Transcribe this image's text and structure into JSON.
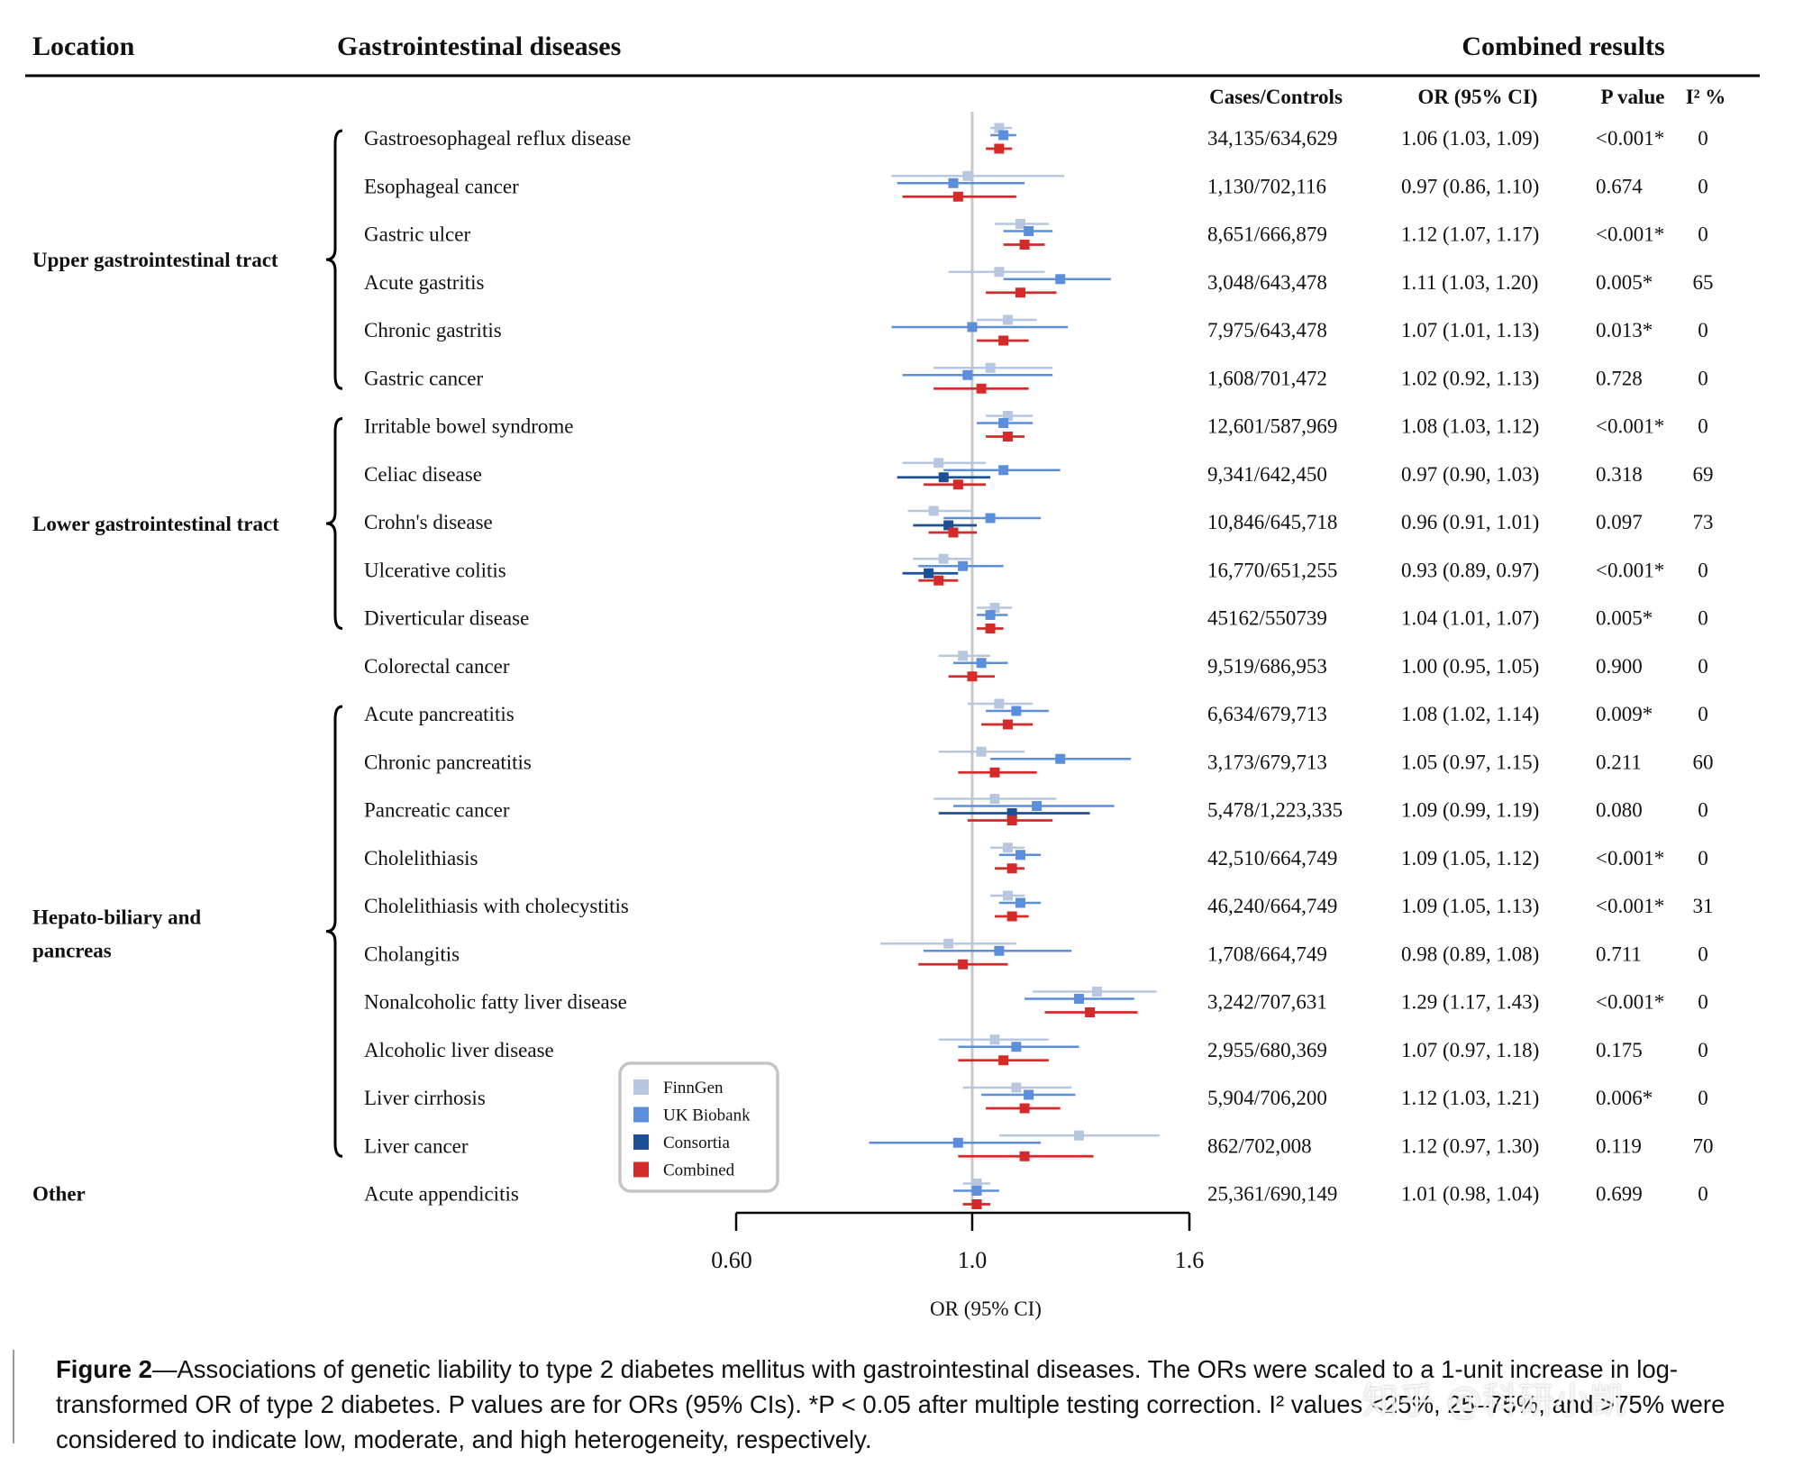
{
  "header": {
    "location": "Location",
    "diseases": "Gastrointestinal diseases",
    "combined": "Combined results"
  },
  "columns": {
    "cases_controls": "Cases/Controls",
    "or_ci": "OR (95% CI)",
    "p_value": "P value",
    "i2": "I² %"
  },
  "groups": [
    {
      "label": "Upper gastrointestinal tract",
      "first_row": 0,
      "last_row": 5
    },
    {
      "label": "Lower gastrointestinal tract",
      "first_row": 6,
      "last_row": 10
    },
    {
      "label": "Hepato-biliary and pancreas",
      "first_row": 12,
      "last_row": 21
    },
    {
      "label": "Other",
      "first_row": 22,
      "last_row": 22
    }
  ],
  "colors": {
    "finngen": "#b7c7e0",
    "ukbiobank": "#5b8fdb",
    "consortia": "#1c4f96",
    "combined": "#d42a2a",
    "reference_line": "#c8c8c8"
  },
  "legend": {
    "entries": [
      {
        "key": "finngen",
        "label": "FinnGen"
      },
      {
        "key": "ukbiobank",
        "label": "UK Biobank"
      },
      {
        "key": "consortia",
        "label": "Consortia"
      },
      {
        "key": "combined",
        "label": "Combined"
      }
    ]
  },
  "chart_data": {
    "type": "forest",
    "xlabel": "OR (95% CI)",
    "xscale": "log",
    "xlim": [
      0.6,
      1.6
    ],
    "xticks": [
      0.6,
      1.0,
      1.6
    ],
    "xtick_labels": [
      "0.60",
      "1.0",
      "1.6"
    ],
    "reference_line": 1.0,
    "rows": [
      {
        "disease": "Gastroesophageal reflux disease",
        "cases_controls": "34,135/634,629",
        "or_text": "1.06 (1.03, 1.09)",
        "p": "<0.001*",
        "i2": "0",
        "estimates": [
          {
            "source": "finngen",
            "or": 1.06,
            "lo": 1.04,
            "hi": 1.09
          },
          {
            "source": "ukbiobank",
            "or": 1.07,
            "lo": 1.04,
            "hi": 1.1
          },
          {
            "source": "combined",
            "or": 1.06,
            "lo": 1.03,
            "hi": 1.09
          }
        ]
      },
      {
        "disease": "Esophageal cancer",
        "cases_controls": "1,130/702,116",
        "or_text": "0.97 (0.86, 1.10)",
        "p": "0.674",
        "i2": "0",
        "estimates": [
          {
            "source": "finngen",
            "or": 0.99,
            "lo": 0.84,
            "hi": 1.22
          },
          {
            "source": "ukbiobank",
            "or": 0.96,
            "lo": 0.85,
            "hi": 1.12
          },
          {
            "source": "combined",
            "or": 0.97,
            "lo": 0.86,
            "hi": 1.1
          }
        ]
      },
      {
        "disease": "Gastric ulcer",
        "cases_controls": "8,651/666,879",
        "or_text": "1.12 (1.07, 1.17)",
        "p": "<0.001*",
        "i2": "0",
        "estimates": [
          {
            "source": "finngen",
            "or": 1.11,
            "lo": 1.05,
            "hi": 1.18
          },
          {
            "source": "ukbiobank",
            "or": 1.13,
            "lo": 1.07,
            "hi": 1.19
          },
          {
            "source": "combined",
            "or": 1.12,
            "lo": 1.07,
            "hi": 1.17
          }
        ]
      },
      {
        "disease": "Acute gastritis",
        "cases_controls": "3,048/643,478",
        "or_text": "1.11 (1.03, 1.20)",
        "p": "0.005*",
        "i2": "65",
        "estimates": [
          {
            "source": "finngen",
            "or": 1.06,
            "lo": 0.95,
            "hi": 1.17
          },
          {
            "source": "ukbiobank",
            "or": 1.21,
            "lo": 1.07,
            "hi": 1.35
          },
          {
            "source": "combined",
            "or": 1.11,
            "lo": 1.03,
            "hi": 1.2
          }
        ]
      },
      {
        "disease": "Chronic gastritis",
        "cases_controls": "7,975/643,478",
        "or_text": "1.07 (1.01, 1.13)",
        "p": "0.013*",
        "i2": "0",
        "estimates": [
          {
            "source": "finngen",
            "or": 1.08,
            "lo": 1.01,
            "hi": 1.15
          },
          {
            "source": "ukbiobank",
            "or": 1.0,
            "lo": 0.84,
            "hi": 1.23
          },
          {
            "source": "combined",
            "or": 1.07,
            "lo": 1.01,
            "hi": 1.13
          }
        ]
      },
      {
        "disease": "Gastric cancer",
        "cases_controls": "1,608/701,472",
        "or_text": "1.02 (0.92, 1.13)",
        "p": "0.728",
        "i2": "0",
        "estimates": [
          {
            "source": "finngen",
            "or": 1.04,
            "lo": 0.92,
            "hi": 1.19
          },
          {
            "source": "ukbiobank",
            "or": 0.99,
            "lo": 0.86,
            "hi": 1.19
          },
          {
            "source": "combined",
            "or": 1.02,
            "lo": 0.92,
            "hi": 1.13
          }
        ]
      },
      {
        "disease": "Irritable bowel syndrome",
        "cases_controls": "12,601/587,969",
        "or_text": "1.08 (1.03, 1.12)",
        "p": "<0.001*",
        "i2": "0",
        "estimates": [
          {
            "source": "finngen",
            "or": 1.08,
            "lo": 1.03,
            "hi": 1.14
          },
          {
            "source": "ukbiobank",
            "or": 1.07,
            "lo": 1.01,
            "hi": 1.14
          },
          {
            "source": "combined",
            "or": 1.08,
            "lo": 1.03,
            "hi": 1.12
          }
        ]
      },
      {
        "disease": "Celiac disease",
        "cases_controls": "9,341/642,450",
        "or_text": "0.97 (0.90, 1.03)",
        "p": "0.318",
        "i2": "69",
        "estimates": [
          {
            "source": "finngen",
            "or": 0.93,
            "lo": 0.86,
            "hi": 1.03
          },
          {
            "source": "ukbiobank",
            "or": 1.07,
            "lo": 0.94,
            "hi": 1.21
          },
          {
            "source": "consortia",
            "or": 0.94,
            "lo": 0.85,
            "hi": 1.04
          },
          {
            "source": "combined",
            "or": 0.97,
            "lo": 0.9,
            "hi": 1.03
          }
        ]
      },
      {
        "disease": "Crohn's disease",
        "cases_controls": "10,846/645,718",
        "or_text": "0.96 (0.91, 1.01)",
        "p": "0.097",
        "i2": "73",
        "estimates": [
          {
            "source": "finngen",
            "or": 0.92,
            "lo": 0.87,
            "hi": 1.0
          },
          {
            "source": "ukbiobank",
            "or": 1.04,
            "lo": 0.94,
            "hi": 1.16
          },
          {
            "source": "consortia",
            "or": 0.95,
            "lo": 0.88,
            "hi": 1.01
          },
          {
            "source": "combined",
            "or": 0.96,
            "lo": 0.91,
            "hi": 1.01
          }
        ]
      },
      {
        "disease": "Ulcerative colitis",
        "cases_controls": "16,770/651,255",
        "or_text": "0.93 (0.89, 0.97)",
        "p": "<0.001*",
        "i2": "0",
        "estimates": [
          {
            "source": "finngen",
            "or": 0.94,
            "lo": 0.88,
            "hi": 1.0
          },
          {
            "source": "ukbiobank",
            "or": 0.98,
            "lo": 0.89,
            "hi": 1.07
          },
          {
            "source": "consortia",
            "or": 0.91,
            "lo": 0.86,
            "hi": 0.97
          },
          {
            "source": "combined",
            "or": 0.93,
            "lo": 0.89,
            "hi": 0.97
          }
        ]
      },
      {
        "disease": "Diverticular disease",
        "cases_controls": "45162/550739",
        "or_text": "1.04 (1.01, 1.07)",
        "p": "0.005*",
        "i2": "0",
        "estimates": [
          {
            "source": "finngen",
            "or": 1.05,
            "lo": 1.01,
            "hi": 1.09
          },
          {
            "source": "ukbiobank",
            "or": 1.04,
            "lo": 1.01,
            "hi": 1.08
          },
          {
            "source": "combined",
            "or": 1.04,
            "lo": 1.01,
            "hi": 1.07
          }
        ]
      },
      {
        "disease": "Colorectal cancer",
        "cases_controls": "9,519/686,953",
        "or_text": "1.00 (0.95, 1.05)",
        "p": "0.900",
        "i2": "0",
        "estimates": [
          {
            "source": "finngen",
            "or": 0.98,
            "lo": 0.93,
            "hi": 1.04
          },
          {
            "source": "ukbiobank",
            "or": 1.02,
            "lo": 0.96,
            "hi": 1.08
          },
          {
            "source": "combined",
            "or": 1.0,
            "lo": 0.95,
            "hi": 1.05
          }
        ]
      },
      {
        "disease": "Acute pancreatitis",
        "cases_controls": "6,634/679,713",
        "or_text": "1.08 (1.02, 1.14)",
        "p": "0.009*",
        "i2": "0",
        "estimates": [
          {
            "source": "finngen",
            "or": 1.06,
            "lo": 0.99,
            "hi": 1.14
          },
          {
            "source": "ukbiobank",
            "or": 1.1,
            "lo": 1.03,
            "hi": 1.18
          },
          {
            "source": "combined",
            "or": 1.08,
            "lo": 1.02,
            "hi": 1.14
          }
        ]
      },
      {
        "disease": "Chronic pancreatitis",
        "cases_controls": "3,173/679,713",
        "or_text": "1.05 (0.97, 1.15)",
        "p": "0.211",
        "i2": "60",
        "estimates": [
          {
            "source": "finngen",
            "or": 1.02,
            "lo": 0.93,
            "hi": 1.12
          },
          {
            "source": "ukbiobank",
            "or": 1.21,
            "lo": 1.04,
            "hi": 1.41
          },
          {
            "source": "combined",
            "or": 1.05,
            "lo": 0.97,
            "hi": 1.15
          }
        ]
      },
      {
        "disease": "Pancreatic cancer",
        "cases_controls": "5,478/1,223,335",
        "or_text": "1.09 (0.99, 1.19)",
        "p": "0.080",
        "i2": "0",
        "estimates": [
          {
            "source": "finngen",
            "or": 1.05,
            "lo": 0.92,
            "hi": 1.2
          },
          {
            "source": "ukbiobank",
            "or": 1.15,
            "lo": 0.96,
            "hi": 1.36
          },
          {
            "source": "consortia",
            "or": 1.09,
            "lo": 0.93,
            "hi": 1.29
          },
          {
            "source": "combined",
            "or": 1.09,
            "lo": 0.99,
            "hi": 1.19
          }
        ]
      },
      {
        "disease": "Cholelithiasis",
        "cases_controls": "42,510/664,749",
        "or_text": "1.09 (1.05, 1.12)",
        "p": "<0.001*",
        "i2": "0",
        "estimates": [
          {
            "source": "finngen",
            "or": 1.08,
            "lo": 1.04,
            "hi": 1.12
          },
          {
            "source": "ukbiobank",
            "or": 1.11,
            "lo": 1.06,
            "hi": 1.16
          },
          {
            "source": "combined",
            "or": 1.09,
            "lo": 1.05,
            "hi": 1.12
          }
        ]
      },
      {
        "disease": "Cholelithiasis with cholecystitis",
        "cases_controls": "46,240/664,749",
        "or_text": "1.09 (1.05, 1.13)",
        "p": "<0.001*",
        "i2": "31",
        "estimates": [
          {
            "source": "finngen",
            "or": 1.08,
            "lo": 1.04,
            "hi": 1.12
          },
          {
            "source": "ukbiobank",
            "or": 1.11,
            "lo": 1.06,
            "hi": 1.16
          },
          {
            "source": "combined",
            "or": 1.09,
            "lo": 1.05,
            "hi": 1.13
          }
        ]
      },
      {
        "disease": "Cholangitis",
        "cases_controls": "1,708/664,749",
        "or_text": "0.98 (0.89, 1.08)",
        "p": "0.711",
        "i2": "0",
        "estimates": [
          {
            "source": "finngen",
            "or": 0.95,
            "lo": 0.82,
            "hi": 1.1
          },
          {
            "source": "ukbiobank",
            "or": 1.06,
            "lo": 0.9,
            "hi": 1.24
          },
          {
            "source": "combined",
            "or": 0.98,
            "lo": 0.89,
            "hi": 1.08
          }
        ]
      },
      {
        "disease": "Nonalcoholic fatty liver disease",
        "cases_controls": "3,242/707,631",
        "or_text": "1.29 (1.17, 1.43)",
        "p": "<0.001*",
        "i2": "0",
        "estimates": [
          {
            "source": "finngen",
            "or": 1.31,
            "lo": 1.14,
            "hi": 1.49
          },
          {
            "source": "ukbiobank",
            "or": 1.26,
            "lo": 1.12,
            "hi": 1.42
          },
          {
            "source": "combined",
            "or": 1.29,
            "lo": 1.17,
            "hi": 1.43
          }
        ]
      },
      {
        "disease": "Alcoholic liver disease",
        "cases_controls": "2,955/680,369",
        "or_text": "1.07 (0.97, 1.18)",
        "p": "0.175",
        "i2": "0",
        "estimates": [
          {
            "source": "finngen",
            "or": 1.05,
            "lo": 0.93,
            "hi": 1.18
          },
          {
            "source": "ukbiobank",
            "or": 1.1,
            "lo": 0.97,
            "hi": 1.26
          },
          {
            "source": "combined",
            "or": 1.07,
            "lo": 0.97,
            "hi": 1.18
          }
        ]
      },
      {
        "disease": "Liver cirrhosis",
        "cases_controls": "5,904/706,200",
        "or_text": "1.12 (1.03, 1.21)",
        "p": "0.006*",
        "i2": "0",
        "estimates": [
          {
            "source": "finngen",
            "or": 1.1,
            "lo": 0.98,
            "hi": 1.24
          },
          {
            "source": "ukbiobank",
            "or": 1.13,
            "lo": 1.02,
            "hi": 1.25
          },
          {
            "source": "combined",
            "or": 1.12,
            "lo": 1.03,
            "hi": 1.21
          }
        ]
      },
      {
        "disease": "Liver cancer",
        "cases_controls": "862/702,008",
        "or_text": "1.12 (0.97, 1.30)",
        "p": "0.119",
        "i2": "70",
        "estimates": [
          {
            "source": "finngen",
            "or": 1.26,
            "lo": 1.06,
            "hi": 1.5
          },
          {
            "source": "ukbiobank",
            "or": 0.97,
            "lo": 0.8,
            "hi": 1.16
          },
          {
            "source": "combined",
            "or": 1.12,
            "lo": 0.97,
            "hi": 1.3
          }
        ]
      },
      {
        "disease": "Acute appendicitis",
        "cases_controls": "25,361/690,149",
        "or_text": "1.01 (0.98, 1.04)",
        "p": "0.699",
        "i2": "0",
        "estimates": [
          {
            "source": "finngen",
            "or": 1.01,
            "lo": 0.98,
            "hi": 1.04
          },
          {
            "source": "ukbiobank",
            "or": 1.01,
            "lo": 0.96,
            "hi": 1.06
          },
          {
            "source": "combined",
            "or": 1.01,
            "lo": 0.98,
            "hi": 1.04
          }
        ]
      }
    ]
  },
  "caption": {
    "lead": "Figure 2",
    "text": "—Associations of genetic liability to type 2 diabetes mellitus with gastrointestinal diseases. The ORs were scaled to a 1-unit increase in log-transformed OR of type 2 diabetes. P values are for ORs (95% CIs). *P < 0.05 after multiple testing correction. I² values <25%, 25–75%, and >75% were considered to indicate low, moderate, and high heterogeneity, respectively."
  },
  "watermark": "知乎 @科研小凯"
}
